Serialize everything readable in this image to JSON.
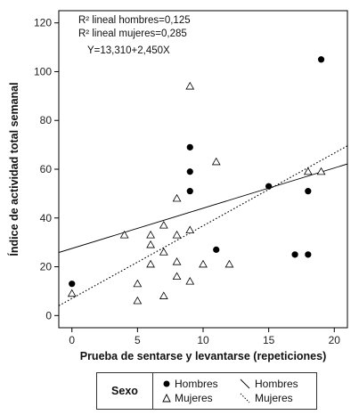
{
  "chart_data": {
    "type": "scatter",
    "xlabel": "Prueba de sentarse y levantarse (repeticiones)",
    "ylabel": "Índice de actividad total semanal",
    "xlim": [
      -1,
      21
    ],
    "ylim": [
      -5,
      125
    ],
    "xticks": [
      0,
      5,
      10,
      15,
      20
    ],
    "yticks": [
      0,
      20,
      40,
      60,
      80,
      100,
      120
    ],
    "annotations": [
      "R² lineal hombres=0,125",
      "R² lineal mujeres=0,285",
      "Y=13,310+2,450X"
    ],
    "series": [
      {
        "name": "Hombres",
        "marker": "filled-circle",
        "points": [
          [
            0,
            13
          ],
          [
            9,
            69
          ],
          [
            9,
            59
          ],
          [
            9,
            51
          ],
          [
            11,
            27
          ],
          [
            15,
            53
          ],
          [
            17,
            25
          ],
          [
            18,
            25
          ],
          [
            18,
            51
          ],
          [
            19,
            105
          ]
        ]
      },
      {
        "name": "Mujeres",
        "marker": "open-triangle",
        "points": [
          [
            0,
            9
          ],
          [
            4,
            33
          ],
          [
            5,
            6
          ],
          [
            5,
            13
          ],
          [
            6,
            33
          ],
          [
            6,
            29
          ],
          [
            6,
            21
          ],
          [
            7,
            37
          ],
          [
            7,
            26
          ],
          [
            7,
            8
          ],
          [
            8,
            48
          ],
          [
            8,
            33
          ],
          [
            8,
            22
          ],
          [
            8,
            16
          ],
          [
            9,
            94
          ],
          [
            9,
            35
          ],
          [
            9,
            14
          ],
          [
            10,
            21
          ],
          [
            11,
            63
          ],
          [
            12,
            21
          ],
          [
            18,
            59
          ],
          [
            19,
            59
          ]
        ]
      }
    ],
    "fit_lines": [
      {
        "name": "Hombres",
        "style": "solid",
        "intercept": 27.5,
        "slope": 1.65
      },
      {
        "name": "Mujeres",
        "style": "dotted",
        "intercept": 7.0,
        "slope": 2.98
      }
    ]
  },
  "legend": {
    "title": "Sexo",
    "items": {
      "hombres_points": "Hombres",
      "mujeres_points": "Mujeres",
      "hombres_line": "Hombres",
      "mujeres_line": "Mujeres"
    }
  }
}
